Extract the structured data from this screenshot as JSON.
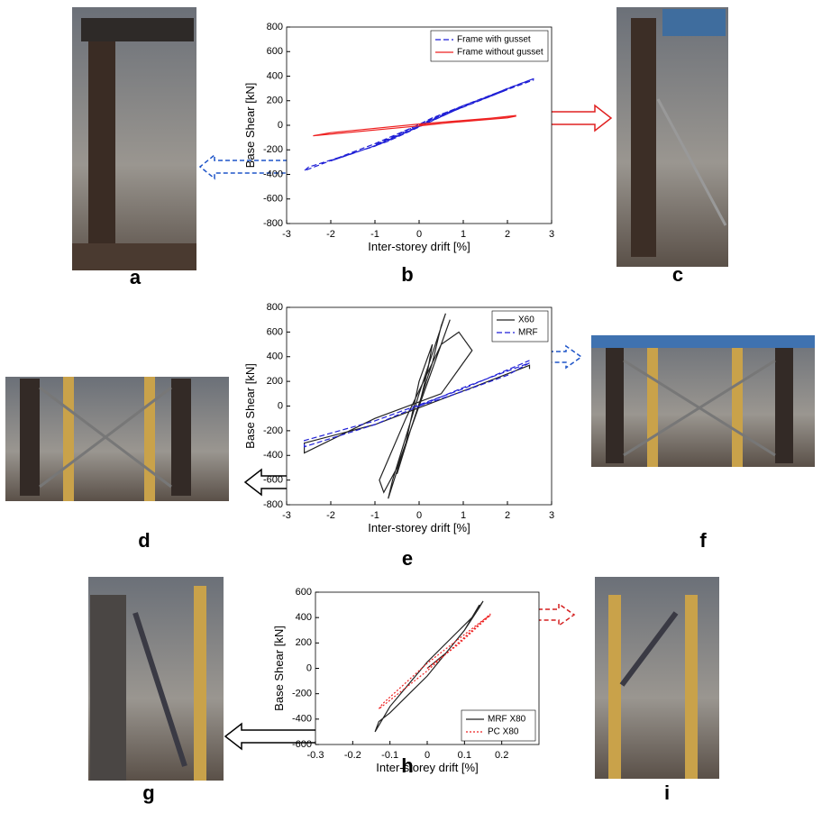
{
  "chart_data": [
    {
      "type": "line",
      "xlabel": "Inter-storey drift [%]",
      "ylabel": "Base Shear [kN]",
      "xlim": [
        -3,
        3
      ],
      "ylim": [
        -800,
        800
      ],
      "xticks": [
        -3,
        -2,
        -1,
        0,
        1,
        2,
        3
      ],
      "yticks": [
        -800,
        -600,
        -400,
        -200,
        0,
        200,
        400,
        600,
        800
      ],
      "legend": "upper right",
      "series": [
        {
          "name": "Frame with gusset",
          "color": "#1f1fd6",
          "dash": "dashed",
          "x": [
            0,
            0.5,
            1,
            0.3,
            -0.5,
            -1,
            -0.3,
            0.5,
            1.5,
            2,
            0.8,
            -0.8,
            -1.5,
            -2,
            -0.7,
            0.8,
            2,
            2.6,
            1,
            -1,
            -2.5,
            -2.6,
            -1,
            1,
            2.6
          ],
          "values": [
            0,
            80,
            160,
            60,
            -80,
            -160,
            -60,
            90,
            220,
            290,
            120,
            -140,
            -230,
            -290,
            -130,
            120,
            300,
            380,
            160,
            -170,
            -340,
            -370,
            -150,
            160,
            370
          ]
        },
        {
          "name": "Frame without gusset",
          "color": "#ee2222",
          "dash": "solid",
          "x": [
            0,
            1,
            2,
            2.2,
            0,
            -2,
            -2.4,
            0,
            2.2
          ],
          "values": [
            0,
            30,
            60,
            75,
            10,
            -60,
            -85,
            -5,
            80
          ]
        }
      ]
    },
    {
      "type": "line",
      "xlabel": "Inter-storey drift [%]",
      "ylabel": "Base Shear [kN]",
      "xlim": [
        -3,
        3
      ],
      "ylim": [
        -800,
        800
      ],
      "xticks": [
        -3,
        -2,
        -1,
        0,
        1,
        2,
        3
      ],
      "yticks": [
        -800,
        -600,
        -400,
        -200,
        0,
        200,
        400,
        600,
        800
      ],
      "legend": "upper right",
      "series": [
        {
          "name": "X60",
          "color": "#222222",
          "dash": "solid",
          "x": [
            0,
            0.2,
            0.3,
            0,
            -0.3,
            -0.5,
            -0.2,
            0.3,
            0.5,
            0.6,
            0,
            -0.6,
            -0.7,
            -0.3,
            0.4,
            0.7,
            0.2,
            -0.5,
            -0.8,
            -0.9,
            -0.3,
            0.5,
            0.9,
            1.2,
            0.5,
            -1,
            -2.6,
            -2.6,
            -1,
            1.2,
            2.5,
            2.5
          ],
          "values": [
            0,
            300,
            500,
            200,
            -300,
            -550,
            -200,
            350,
            650,
            750,
            100,
            -600,
            -750,
            -300,
            400,
            700,
            200,
            -500,
            -700,
            -600,
            -100,
            500,
            600,
            450,
            100,
            -100,
            -380,
            -300,
            -150,
            150,
            330,
            300
          ]
        },
        {
          "name": "MRF",
          "color": "#1f1fd6",
          "dash": "dashed",
          "x": [
            0,
            1,
            2,
            2.5,
            1,
            -1,
            -2.6,
            -2.6,
            -1,
            1,
            2.5
          ],
          "values": [
            0,
            120,
            250,
            350,
            150,
            -150,
            -330,
            -280,
            -120,
            140,
            370
          ]
        }
      ]
    },
    {
      "type": "line",
      "xlabel": "Inter-storey drift [%]",
      "ylabel": "Base Shear [kN]",
      "xlim": [
        -0.3,
        0.3
      ],
      "ylim": [
        -600,
        600
      ],
      "xticks": [
        -0.3,
        -0.2,
        -0.1,
        0,
        0.1,
        0.2
      ],
      "yticks": [
        -600,
        -400,
        -200,
        0,
        200,
        400,
        600
      ],
      "legend": "lower right",
      "series": [
        {
          "name": "MRF X80",
          "color": "#222222",
          "dash": "solid",
          "x": [
            0,
            0.05,
            0.1,
            0.14,
            0.15,
            0.12,
            0,
            -0.1,
            -0.14,
            -0.13,
            -0.1,
            0,
            0.1,
            0.14
          ],
          "values": [
            0,
            120,
            300,
            480,
            530,
            400,
            50,
            -300,
            -500,
            -420,
            -350,
            -60,
            300,
            500
          ]
        },
        {
          "name": "PC X80",
          "color": "#ee2222",
          "dash": "dotted",
          "x": [
            0,
            0.08,
            0.17,
            0.15,
            0,
            -0.12,
            -0.13,
            0,
            0.17
          ],
          "values": [
            0,
            180,
            420,
            380,
            40,
            -280,
            -320,
            -20,
            430
          ]
        }
      ]
    }
  ],
  "panel_labels": [
    "a",
    "b",
    "c",
    "d",
    "e",
    "f",
    "g",
    "h",
    "i"
  ]
}
